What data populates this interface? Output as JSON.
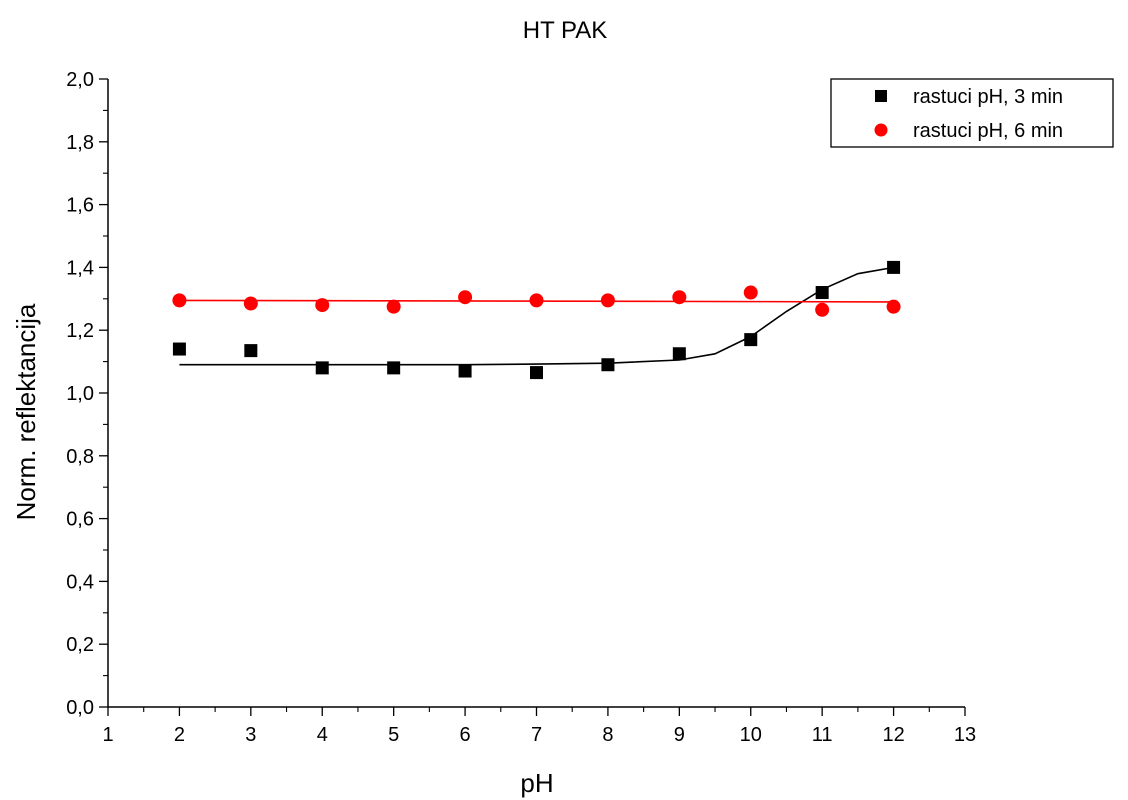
{
  "chart_data": {
    "type": "scatter",
    "title": "HT PAK",
    "xlabel": "pH",
    "ylabel": "Norm. reflektancija",
    "xlim": [
      1,
      13
    ],
    "ylim": [
      0.0,
      2.0
    ],
    "x_ticks": [
      "1",
      "2",
      "3",
      "4",
      "5",
      "6",
      "7",
      "8",
      "9",
      "10",
      "11",
      "12",
      "13"
    ],
    "y_ticks": [
      "0,0",
      "0,2",
      "0,4",
      "0,6",
      "0,8",
      "1,0",
      "1,2",
      "1,4",
      "1,6",
      "1,8",
      "2,0"
    ],
    "grid": false,
    "legend_position": "top-right",
    "series": [
      {
        "name": "rastuci pH, 3 min",
        "color": "#000000",
        "marker": "square",
        "x": [
          2,
          3,
          4,
          5,
          6,
          7,
          8,
          9,
          10,
          11,
          12
        ],
        "y": [
          1.14,
          1.135,
          1.08,
          1.08,
          1.07,
          1.065,
          1.09,
          1.125,
          1.17,
          1.32,
          1.4
        ],
        "fit": {
          "x": [
            2,
            3,
            4,
            5,
            6,
            7,
            8,
            9,
            9.5,
            10,
            10.5,
            11,
            11.5,
            12
          ],
          "y": [
            1.09,
            1.09,
            1.09,
            1.09,
            1.09,
            1.092,
            1.095,
            1.105,
            1.125,
            1.18,
            1.26,
            1.33,
            1.38,
            1.4
          ]
        }
      },
      {
        "name": "rastuci pH, 6 min",
        "color": "#ff0000",
        "marker": "circle",
        "x": [
          2,
          3,
          4,
          5,
          6,
          7,
          8,
          9,
          10,
          11,
          12
        ],
        "y": [
          1.295,
          1.285,
          1.28,
          1.275,
          1.305,
          1.295,
          1.295,
          1.305,
          1.32,
          1.265,
          1.275
        ],
        "fit": {
          "x": [
            2,
            12
          ],
          "y": [
            1.295,
            1.29
          ]
        }
      }
    ]
  }
}
